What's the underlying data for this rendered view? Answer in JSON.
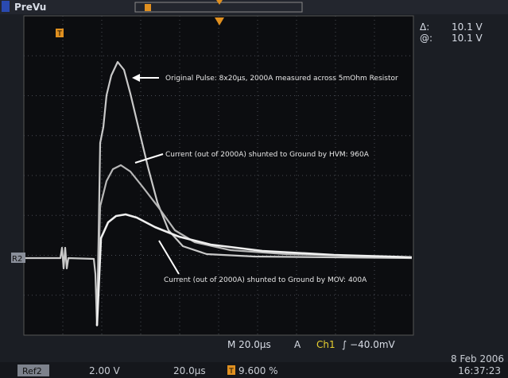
{
  "header": {
    "mode": "PreVu",
    "trigger_marker": "T"
  },
  "readouts": {
    "delta_symbol": "Δ:",
    "delta_value": "10.1 V",
    "at_symbol": "@:",
    "at_value": "10.1 V"
  },
  "annotations": [
    "Original Pulse: 8x20µs, 2000A measured across 5mOhm Resistor",
    "Current (out of 2000A) shunted to Ground by HVM: 960A",
    "Current (out of 2000A) shunted to Ground by MOV: 400A"
  ],
  "reference_marker": "R2",
  "status": {
    "timebase": "M 20.0µs",
    "trigger_mode": "A",
    "channel": "Ch1",
    "trigger_level": "∫ −40.0mV"
  },
  "footer": {
    "ref": "Ref2",
    "ref_scale": "2.00 V",
    "ref_time": "20.0µs",
    "position_marker": "T",
    "position": "9.600 %",
    "date": "8 Feb 2006",
    "time": "16:37:23"
  }
}
